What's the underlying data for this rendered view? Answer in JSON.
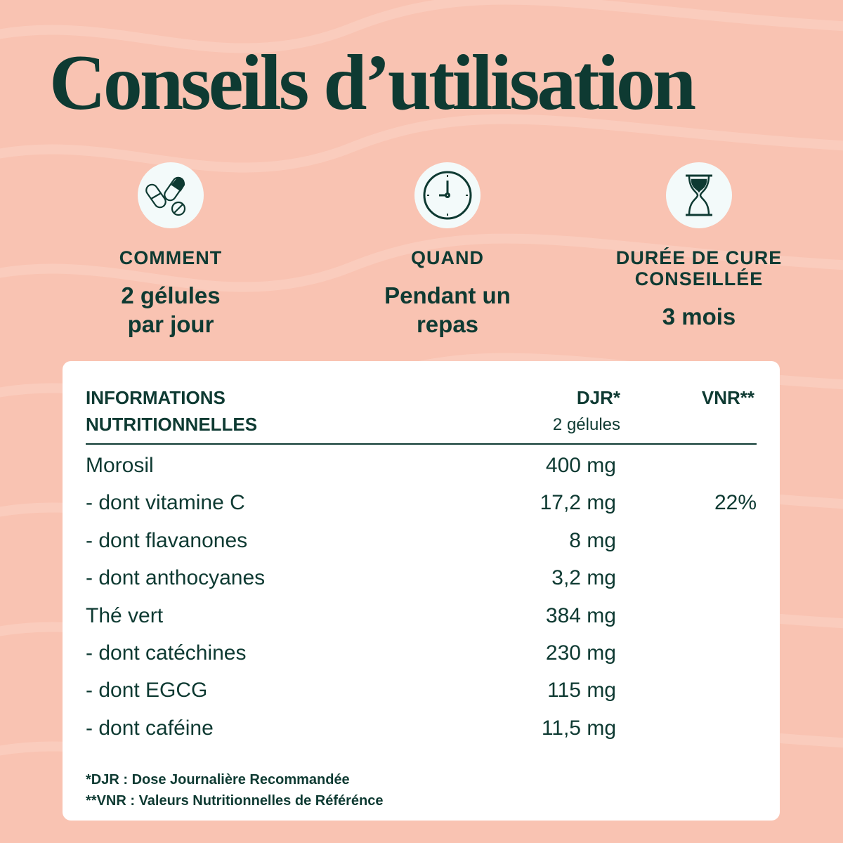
{
  "title": "Conseils d’utilisation",
  "colors": {
    "background": "#f9c3b2",
    "text": "#0e3a32",
    "card": "#ffffff",
    "icon_bg": "#f3fafa"
  },
  "usage": [
    {
      "icon": "pills-icon",
      "label": "COMMENT",
      "value_lines": [
        "2 gélules",
        "par jour"
      ]
    },
    {
      "icon": "clock-icon",
      "label": "QUAND",
      "value_lines": [
        "Pendant un",
        "repas"
      ]
    },
    {
      "icon": "hourglass-icon",
      "label_lines": [
        "DURÉE DE CURE",
        "CONSEILLÉE"
      ],
      "value_lines": [
        "3 mois"
      ]
    }
  ],
  "table": {
    "header": {
      "title_lines": [
        "INFORMATIONS",
        "NUTRITIONNELLES"
      ],
      "djr": "DJR*",
      "djr_sub": "2 gélules",
      "vnr": "VNR**"
    },
    "rows": [
      {
        "name": "Morosil",
        "djr": "400 mg",
        "vnr": ""
      },
      {
        "name": "- dont vitamine C",
        "djr": "17,2 mg",
        "vnr": "22%"
      },
      {
        "name": "- dont flavanones",
        "djr": "8 mg",
        "vnr": ""
      },
      {
        "name": "- dont anthocyanes",
        "djr": "3,2 mg",
        "vnr": ""
      },
      {
        "name": "Thé vert",
        "djr": "384 mg",
        "vnr": ""
      },
      {
        "name": "- dont catéchines",
        "djr": "230 mg",
        "vnr": ""
      },
      {
        "name": "- dont EGCG",
        "djr": "115 mg",
        "vnr": ""
      },
      {
        "name": "- dont caféine",
        "djr": "11,5 mg",
        "vnr": ""
      }
    ],
    "footnotes": [
      "*DJR : Dose Journalière Recommandée",
      "**VNR : Valeurs Nutritionnelles de Référénce"
    ]
  }
}
